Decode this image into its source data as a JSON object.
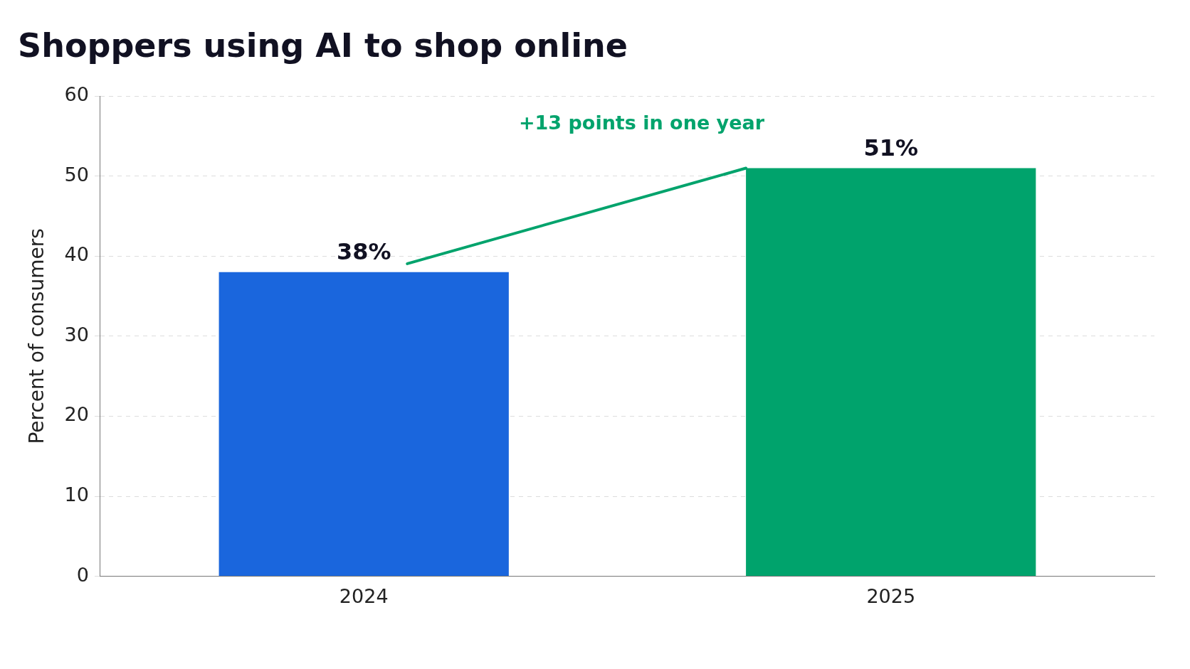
{
  "chart_data": {
    "type": "bar",
    "title": "Shoppers using AI to shop online",
    "ylabel": "Percent of consumers",
    "categories": [
      "2024",
      "2025"
    ],
    "values": [
      38,
      51
    ],
    "colors": [
      "#1a66dd",
      "#00a36c"
    ],
    "value_labels": [
      "38%",
      "51%"
    ],
    "annotations": [
      "+13 points in one year"
    ],
    "ylim": [
      0,
      60
    ],
    "yticks": [
      0,
      10,
      20,
      30,
      40,
      50,
      60
    ],
    "grid": "y",
    "legend": false
  }
}
